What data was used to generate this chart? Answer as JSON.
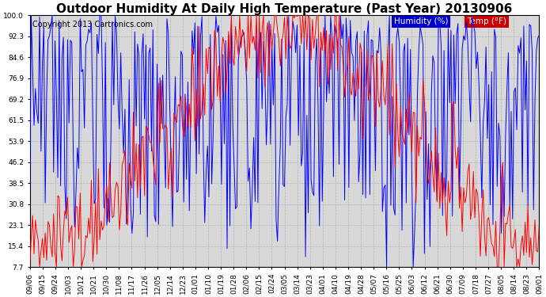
{
  "title": "Outdoor Humidity At Daily High Temperature (Past Year) 20130906",
  "copyright": "Copyright 2013 Cartronics.com",
  "legend_humidity": "Humidity (%)",
  "legend_temp": "Temp (°F)",
  "ylim": [
    7.7,
    100.0
  ],
  "yticks": [
    7.7,
    15.4,
    23.1,
    30.8,
    38.5,
    46.2,
    53.9,
    61.5,
    69.2,
    76.9,
    84.6,
    92.3,
    100.0
  ],
  "xtick_labels": [
    "09/06",
    "09/15",
    "09/24",
    "10/03",
    "10/12",
    "10/21",
    "10/30",
    "11/08",
    "11/17",
    "11/26",
    "12/05",
    "12/14",
    "12/23",
    "01/01",
    "01/10",
    "01/19",
    "01/28",
    "02/06",
    "02/15",
    "02/24",
    "03/05",
    "03/14",
    "03/23",
    "04/01",
    "04/10",
    "04/19",
    "04/28",
    "05/07",
    "05/16",
    "05/25",
    "06/03",
    "06/12",
    "06/21",
    "06/30",
    "07/09",
    "07/18",
    "07/27",
    "08/05",
    "08/14",
    "08/23",
    "09/01"
  ],
  "bg_color": "#ffffff",
  "plot_bg_color": "#d8d8d8",
  "grid_color": "#aaaaaa",
  "humidity_color": "#0000ff",
  "temp_color": "#ff0000",
  "legend_humidity_bg": "#0000cc",
  "legend_temp_bg": "#cc0000",
  "title_fontsize": 11,
  "copyright_fontsize": 7,
  "tick_fontsize": 6.5,
  "legend_fontsize": 7.5
}
